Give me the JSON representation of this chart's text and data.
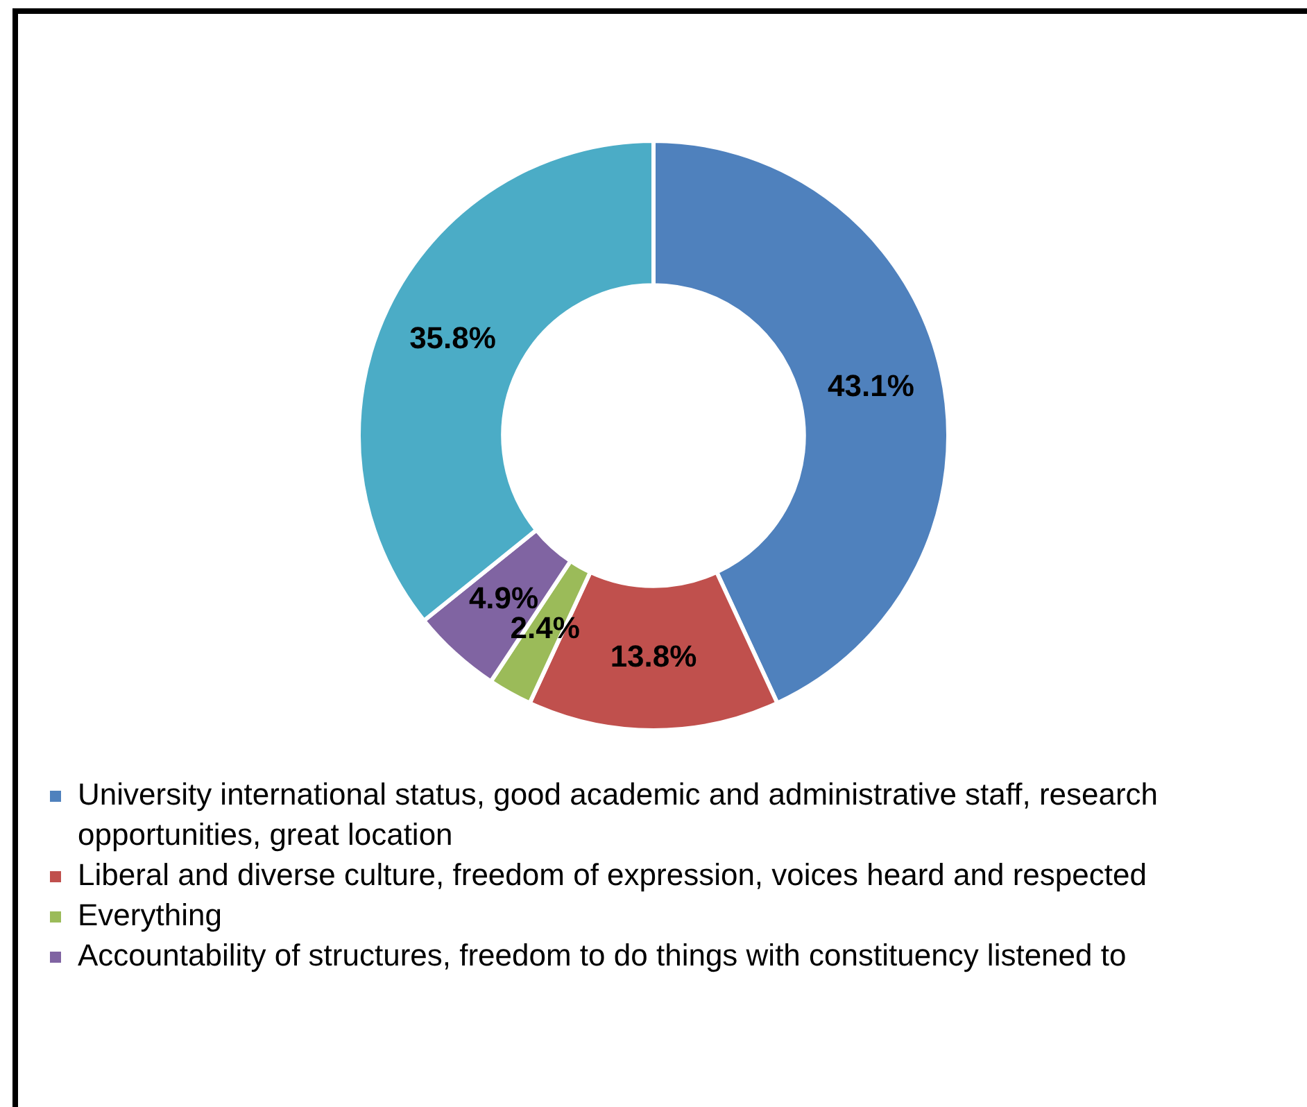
{
  "chart_data": {
    "type": "donut",
    "categories": [
      "University international status, good academic and administrative staff, research opportunities, great location",
      "Liberal and diverse culture, freedom of expression, voices heard and respected",
      "Everything",
      "Accountability of structures, freedom to do things with constituency listened to",
      null
    ],
    "values": [
      43.1,
      13.8,
      2.4,
      4.9,
      35.8
    ],
    "value_labels": [
      "43.1%",
      "13.8%",
      "2.4%",
      "4.9%",
      "35.8%"
    ],
    "colors": [
      "#4f81bd",
      "#c0504d",
      "#9bbb59",
      "#8064a2",
      "#4bacc6"
    ],
    "legend": "bottom"
  }
}
